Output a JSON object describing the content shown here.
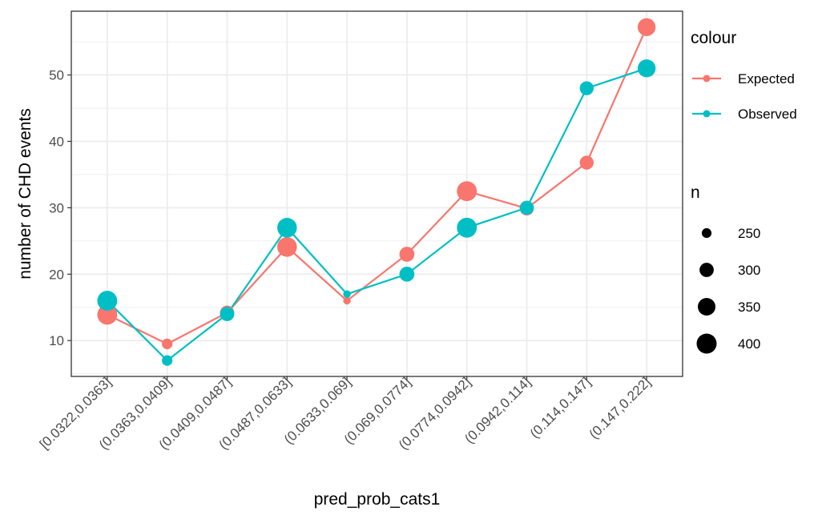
{
  "chart_data": {
    "type": "line",
    "xlabel": "pred_prob_cats1",
    "ylabel": "number of CHD events",
    "categories": [
      "[0.0322,0.0363]",
      "(0.0363,0.0409]",
      "(0.0409,0.0487]",
      "(0.0487,0.0633]",
      "(0.0633,0.069]",
      "(0.069,0.0774]",
      "(0.0774,0.0942]",
      "(0.0942,0.114]",
      "(0.114,0.147]",
      "(0.147,0.222]"
    ],
    "ylim": [
      4.6,
      59.6
    ],
    "yticks": [
      10,
      20,
      30,
      40,
      50
    ],
    "grid": true,
    "series": [
      {
        "name": "Expected",
        "color": "#F8766D",
        "values": [
          13.9,
          9.5,
          14.2,
          24.1,
          16.0,
          23.0,
          32.5,
          29.9,
          36.8,
          57.2
        ],
        "n": [
          390,
          258,
          300,
          385,
          232,
          310,
          390,
          298,
          296,
          355
        ]
      },
      {
        "name": "Observed",
        "color": "#00BFC4",
        "values": [
          16.0,
          7.0,
          14.0,
          27.0,
          17.0,
          20.0,
          27.0,
          30.0,
          48.0,
          51.0
        ],
        "n": [
          390,
          258,
          300,
          385,
          232,
          310,
          390,
          298,
          296,
          355
        ]
      }
    ],
    "legend": {
      "placement": "right",
      "colour_title": "colour",
      "colour_items": [
        "Expected",
        "Observed"
      ],
      "size_title": "n",
      "size_items": [
        "250",
        "300",
        "350",
        "400"
      ],
      "size_values": [
        250,
        300,
        350,
        400
      ]
    }
  }
}
